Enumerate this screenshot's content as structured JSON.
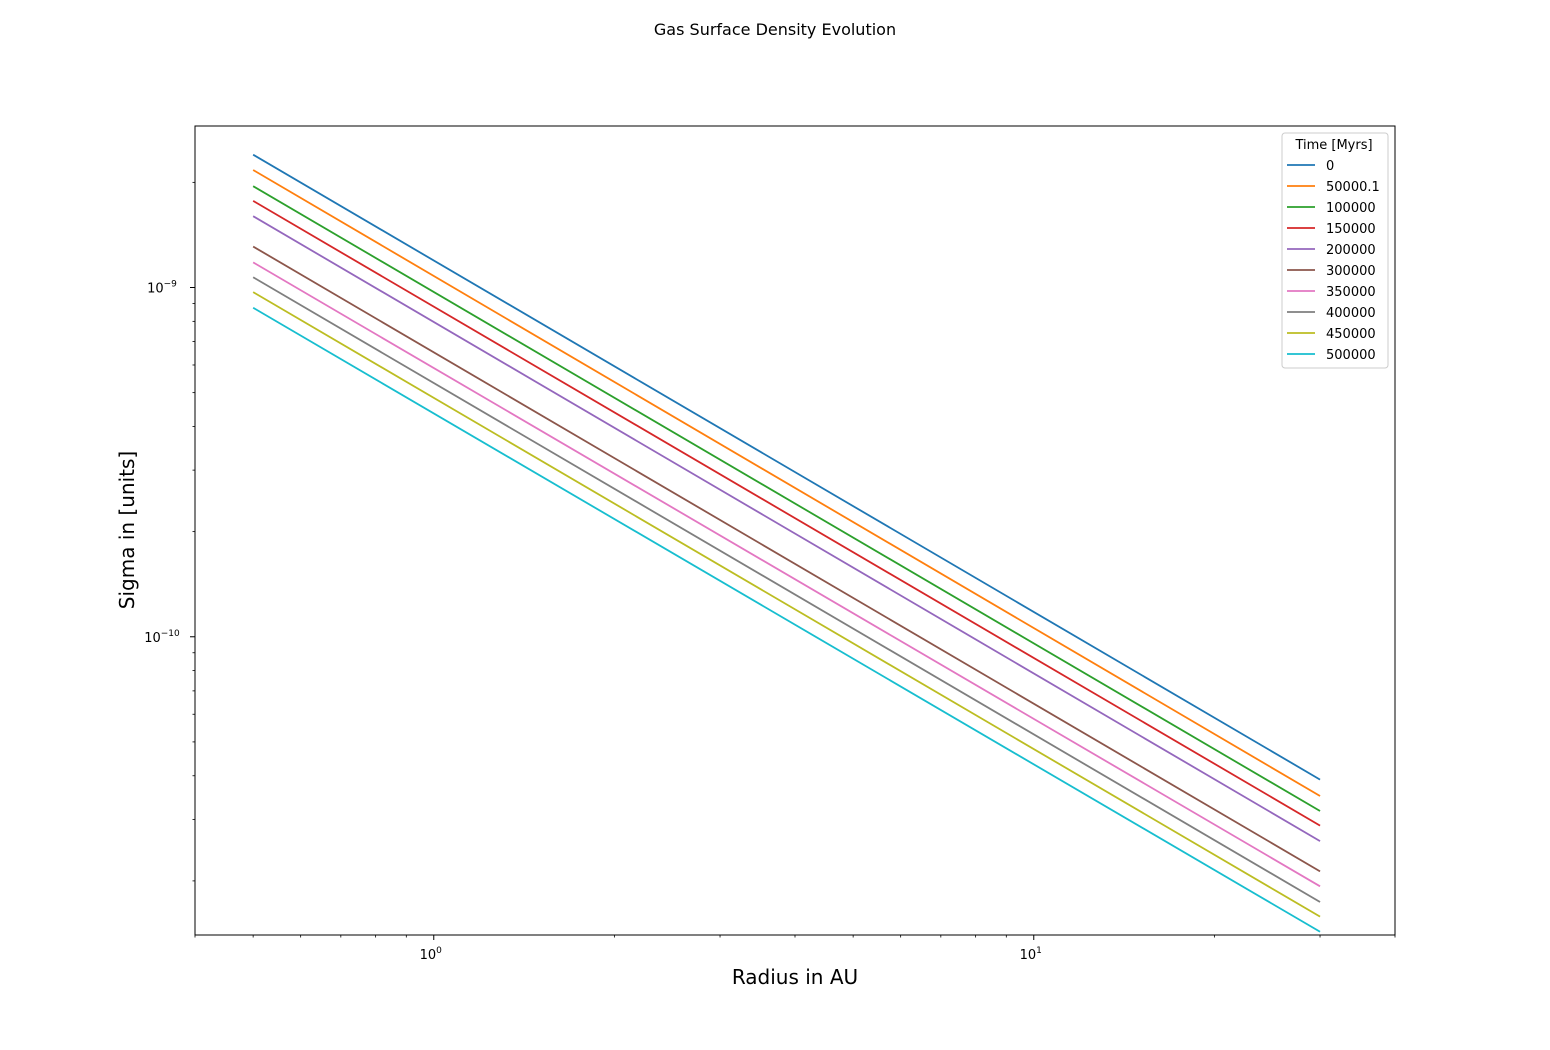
{
  "chart_data": {
    "type": "line",
    "title": "Gas Surface Density Evolution",
    "xlabel": "Radius in AU",
    "ylabel": "Sigma in [units]",
    "xscale": "log",
    "yscale": "log",
    "xlim": [
      0.4,
      40
    ],
    "ylim": [
      1.4e-11,
      2.9e-09
    ],
    "x_range": [
      0.5,
      30
    ],
    "grid": false,
    "legend": {
      "title": "Time [Myrs]",
      "placement": "top-right"
    },
    "xticks": [
      {
        "value": 1,
        "base": "10",
        "exp": "0"
      },
      {
        "value": 10,
        "base": "10",
        "exp": "1"
      }
    ],
    "yticks": [
      {
        "value": 1e-10,
        "base": "10",
        "exp": "−10"
      },
      {
        "value": 1e-09,
        "base": "10",
        "exp": "−9"
      }
    ],
    "series": [
      {
        "name": "0",
        "color": "#1f77b4",
        "y_at_x_min": 2.4e-09,
        "y_at_x_max": 3.9e-11
      },
      {
        "name": "50000.1",
        "color": "#ff7f0e",
        "y_at_x_min": 2.17e-09,
        "y_at_x_max": 3.5e-11
      },
      {
        "name": "100000",
        "color": "#2ca02c",
        "y_at_x_min": 1.95e-09,
        "y_at_x_max": 3.17e-11
      },
      {
        "name": "150000",
        "color": "#d62728",
        "y_at_x_min": 1.77e-09,
        "y_at_x_max": 2.88e-11
      },
      {
        "name": "200000",
        "color": "#9467bd",
        "y_at_x_min": 1.6e-09,
        "y_at_x_max": 2.6e-11
      },
      {
        "name": "300000",
        "color": "#8c564b",
        "y_at_x_min": 1.31e-09,
        "y_at_x_max": 2.13e-11
      },
      {
        "name": "350000",
        "color": "#e377c2",
        "y_at_x_min": 1.18e-09,
        "y_at_x_max": 1.93e-11
      },
      {
        "name": "400000",
        "color": "#7f7f7f",
        "y_at_x_min": 1.07e-09,
        "y_at_x_max": 1.74e-11
      },
      {
        "name": "450000",
        "color": "#bcbd22",
        "y_at_x_min": 9.7e-10,
        "y_at_x_max": 1.58e-11
      },
      {
        "name": "500000",
        "color": "#17becf",
        "y_at_x_min": 8.75e-10,
        "y_at_x_max": 1.43e-11
      }
    ]
  }
}
